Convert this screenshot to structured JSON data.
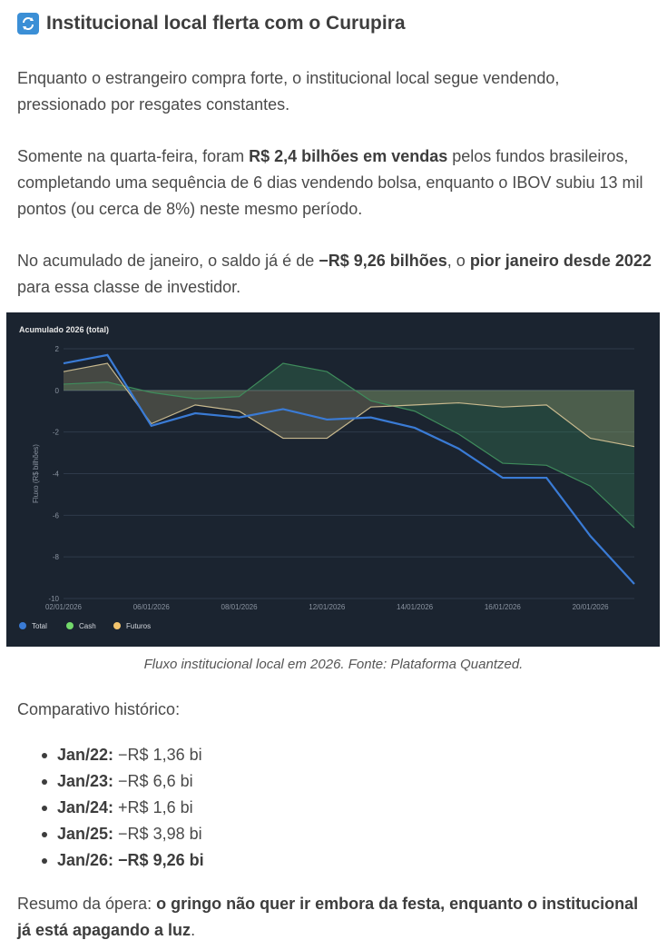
{
  "heading": {
    "icon": "counterclockwise-arrows-icon",
    "title": "Institucional local flerta com o Curupira"
  },
  "p1": "Enquanto o estrangeiro compra forte, o institucional local segue vendendo, pressionado por resgates constantes.",
  "p2": {
    "a": "Somente na quarta-feira, foram ",
    "b": "R$ 2,4 bilhões em vendas",
    "c": " pelos fundos brasileiros, completando uma sequência de 6 dias vendendo bolsa, enquanto o IBOV subiu 13 mil pontos (ou cerca de 8%) neste mesmo período."
  },
  "p3": {
    "a": "No acumulado de janeiro, o saldo já é de ",
    "b": "−R$ 9,26 bilhões",
    "c": ", o ",
    "d": "pior janeiro desde 2022",
    "e": " para essa classe de investidor."
  },
  "caption": "Fluxo institucional local em 2026. Fonte: Plataforma Quantzed.",
  "comparativo_title": "Comparativo histórico:",
  "history": [
    {
      "label": "Jan/22:",
      "value": " −R$ 1,36 bi"
    },
    {
      "label": "Jan/23:",
      "value": " −R$ 6,6 bi"
    },
    {
      "label": "Jan/24:",
      "value": " +R$ 1,6 bi"
    },
    {
      "label": "Jan/25:",
      "value": " −R$ 3,98 bi"
    },
    {
      "label": "Jan/26:",
      "value": " −R$ 9,26 bi"
    }
  ],
  "summary": {
    "a": "Resumo da ópera: ",
    "b": "o gringo não quer ir embora da festa, enquanto o institucional já está apagando a luz",
    "c": "."
  },
  "chart_data": {
    "type": "line",
    "title": "Acumulado 2026 (total)",
    "ylabel": "Fluxo (R$ bilhões)",
    "xlabel": "",
    "ylim": [
      -10,
      2
    ],
    "yticks": [
      2,
      0,
      -2,
      -4,
      -6,
      -8,
      -10
    ],
    "x": [
      "02/01",
      "05/01",
      "06/01",
      "07/01",
      "08/01",
      "09/01",
      "12/01",
      "13/01",
      "14/01",
      "15/01",
      "16/01",
      "19/01",
      "20/01",
      "21/01"
    ],
    "xtick_labels": [
      "02/01/2026",
      "06/01/2026",
      "08/01/2026",
      "12/01/2026",
      "14/01/2026",
      "16/01/2026",
      "20/01/2026"
    ],
    "xtick_index": [
      0,
      2,
      4,
      6,
      8,
      10,
      12
    ],
    "series": [
      {
        "name": "Total",
        "color": "#3a7bd5",
        "values": [
          1.3,
          1.7,
          -1.7,
          -1.1,
          -1.3,
          -0.9,
          -1.4,
          -1.3,
          -1.8,
          -2.8,
          -4.2,
          -4.2,
          -7.0,
          -9.3
        ]
      },
      {
        "name": "Cash",
        "color": "#73d96b",
        "values": [
          0.3,
          0.4,
          -0.1,
          -0.4,
          -0.3,
          1.3,
          0.9,
          -0.5,
          -1.0,
          -2.1,
          -3.5,
          -3.6,
          -4.6,
          -6.6
        ]
      },
      {
        "name": "Futuros",
        "color": "#f2c46d",
        "values": [
          0.9,
          1.3,
          -1.6,
          -0.7,
          -1.0,
          -2.3,
          -2.3,
          -0.8,
          -0.7,
          -0.6,
          -0.8,
          -0.7,
          -2.3,
          -2.7
        ]
      }
    ],
    "legend": "bottom-left"
  }
}
